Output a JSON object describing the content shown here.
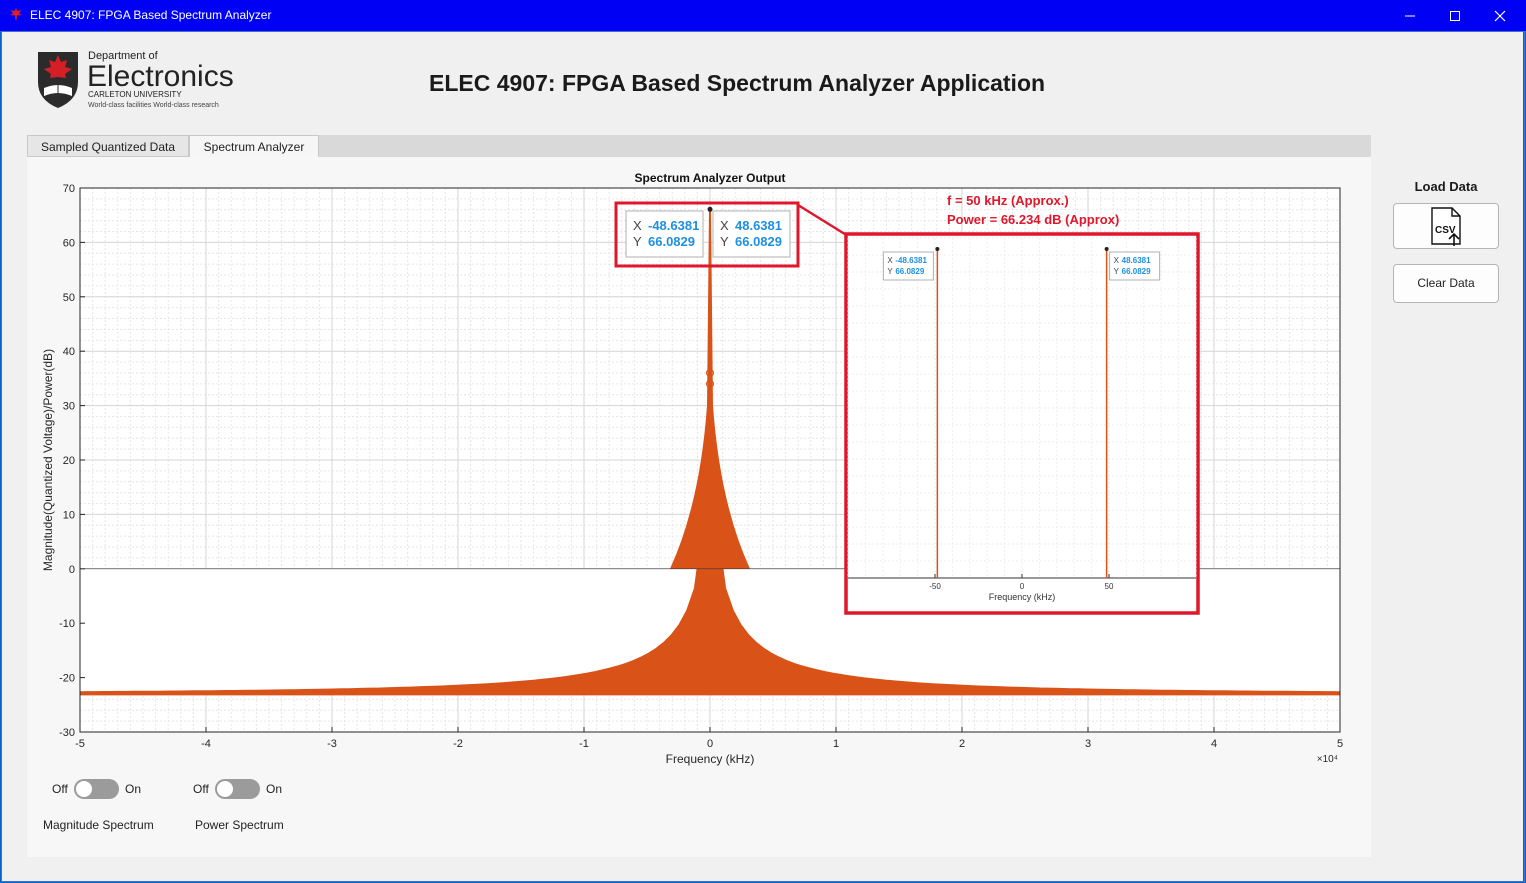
{
  "window": {
    "title": "ELEC 4907: FPGA Based Spectrum Analyzer"
  },
  "logo": {
    "dept": "Department of",
    "name": "Electronics",
    "university": "CARLETON UNIVERSITY",
    "tagline": "World-class facilities  World-class research"
  },
  "app_title": "ELEC 4907: FPGA Based Spectrum Analyzer Application",
  "tabs": [
    {
      "label": "Sampled Quantized Data"
    },
    {
      "label": "Spectrum Analyzer"
    }
  ],
  "side": {
    "load_label": "Load Data",
    "csv_icon_text": "CSV",
    "clear_label": "Clear Data"
  },
  "toggles": [
    {
      "off": "Off",
      "on": "On",
      "caption": "Magnitude Spectrum"
    },
    {
      "off": "Off",
      "on": "On",
      "caption": "Power Spectrum"
    }
  ],
  "annotation": {
    "line1": "f = 50 kHz (Approx.)",
    "line2": "Power = 66.234 dB (Approx)"
  },
  "datatips": [
    {
      "x": "-48.6381",
      "y": "66.0829"
    },
    {
      "x": "48.6381",
      "y": "66.0829"
    }
  ],
  "chart_data": [
    {
      "type": "line",
      "title": "Spectrum Analyzer Output",
      "xlabel": "Frequency (kHz)",
      "ylabel": "Magnitude(Quantized Voltage)/Power(dB)",
      "x_exponent": "×10⁴",
      "xlim": [
        -5,
        5
      ],
      "ylim": [
        -30,
        70
      ],
      "xticks": [
        -5,
        -4,
        -3,
        -2,
        -1,
        0,
        1,
        2,
        3,
        4,
        5
      ],
      "yticks": [
        70,
        60,
        50,
        40,
        30,
        20,
        10,
        0,
        -10,
        -20,
        -30
      ],
      "grid": "minor",
      "color": "#d95319",
      "series": [
        {
          "peaks": [
            {
              "x": -48.6381,
              "y": 66.0829
            },
            {
              "x": 48.6381,
              "y": 66.0829
            }
          ],
          "noise_floor": -23,
          "baseline": 0
        }
      ]
    },
    {
      "type": "line",
      "xlabel": "Frequency (kHz)",
      "xticks": [
        -50,
        0,
        50
      ],
      "color": "#d95319",
      "series": [
        {
          "peaks": [
            {
              "x": -48.6381,
              "y": 66.0829
            },
            {
              "x": 48.6381,
              "y": 66.0829
            }
          ]
        }
      ]
    }
  ]
}
